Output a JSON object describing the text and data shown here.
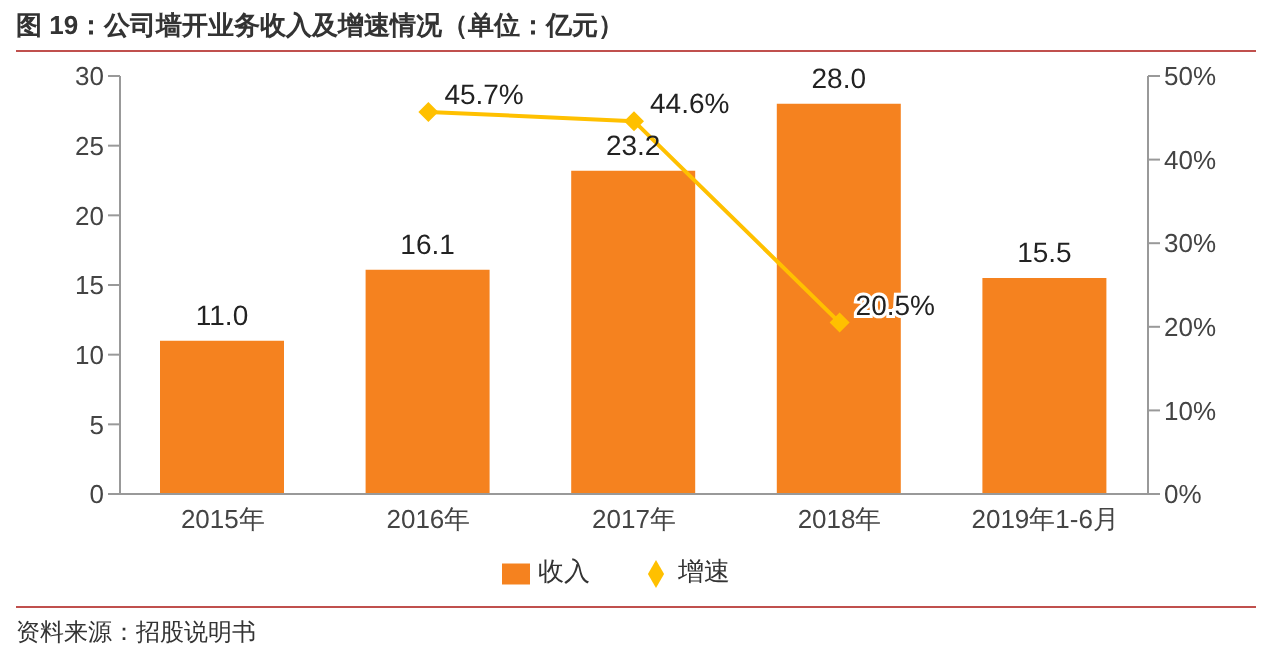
{
  "chart_data": {
    "type": "bar",
    "title": "图 19：公司墙开业务收入及增速情况（单位：亿元）",
    "categories": [
      "2015年",
      "2016年",
      "2017年",
      "2018年",
      "2019年1-6月"
    ],
    "series": [
      {
        "name": "收入",
        "color": "#f5821f",
        "values": [
          11.0,
          16.1,
          23.2,
          28.0,
          15.5
        ],
        "value_labels": [
          "11.0",
          "16.1",
          "23.2",
          "28.0",
          "15.5"
        ]
      },
      {
        "name": "增速",
        "type": "line",
        "axis": "y2",
        "color": "#ffc000",
        "values": [
          null,
          45.7,
          44.6,
          20.5,
          null
        ],
        "value_labels": [
          null,
          "45.7%",
          "44.6%",
          "20.5%",
          null
        ]
      }
    ],
    "ylim": [
      0,
      30
    ],
    "yticks": [
      0,
      5,
      10,
      15,
      20,
      25,
      30
    ],
    "y2lim": [
      0,
      50
    ],
    "y2ticks": [
      {
        "value": 0,
        "label": "0%"
      },
      {
        "value": 10,
        "label": "10%"
      },
      {
        "value": 20,
        "label": "20%"
      },
      {
        "value": 30,
        "label": "30%"
      },
      {
        "value": 40,
        "label": "40%"
      },
      {
        "value": 50,
        "label": "50%"
      }
    ],
    "marker": "diamond",
    "legend": "bottom",
    "grid": false,
    "annotations": [
      "资料来源：招股说明书"
    ]
  }
}
